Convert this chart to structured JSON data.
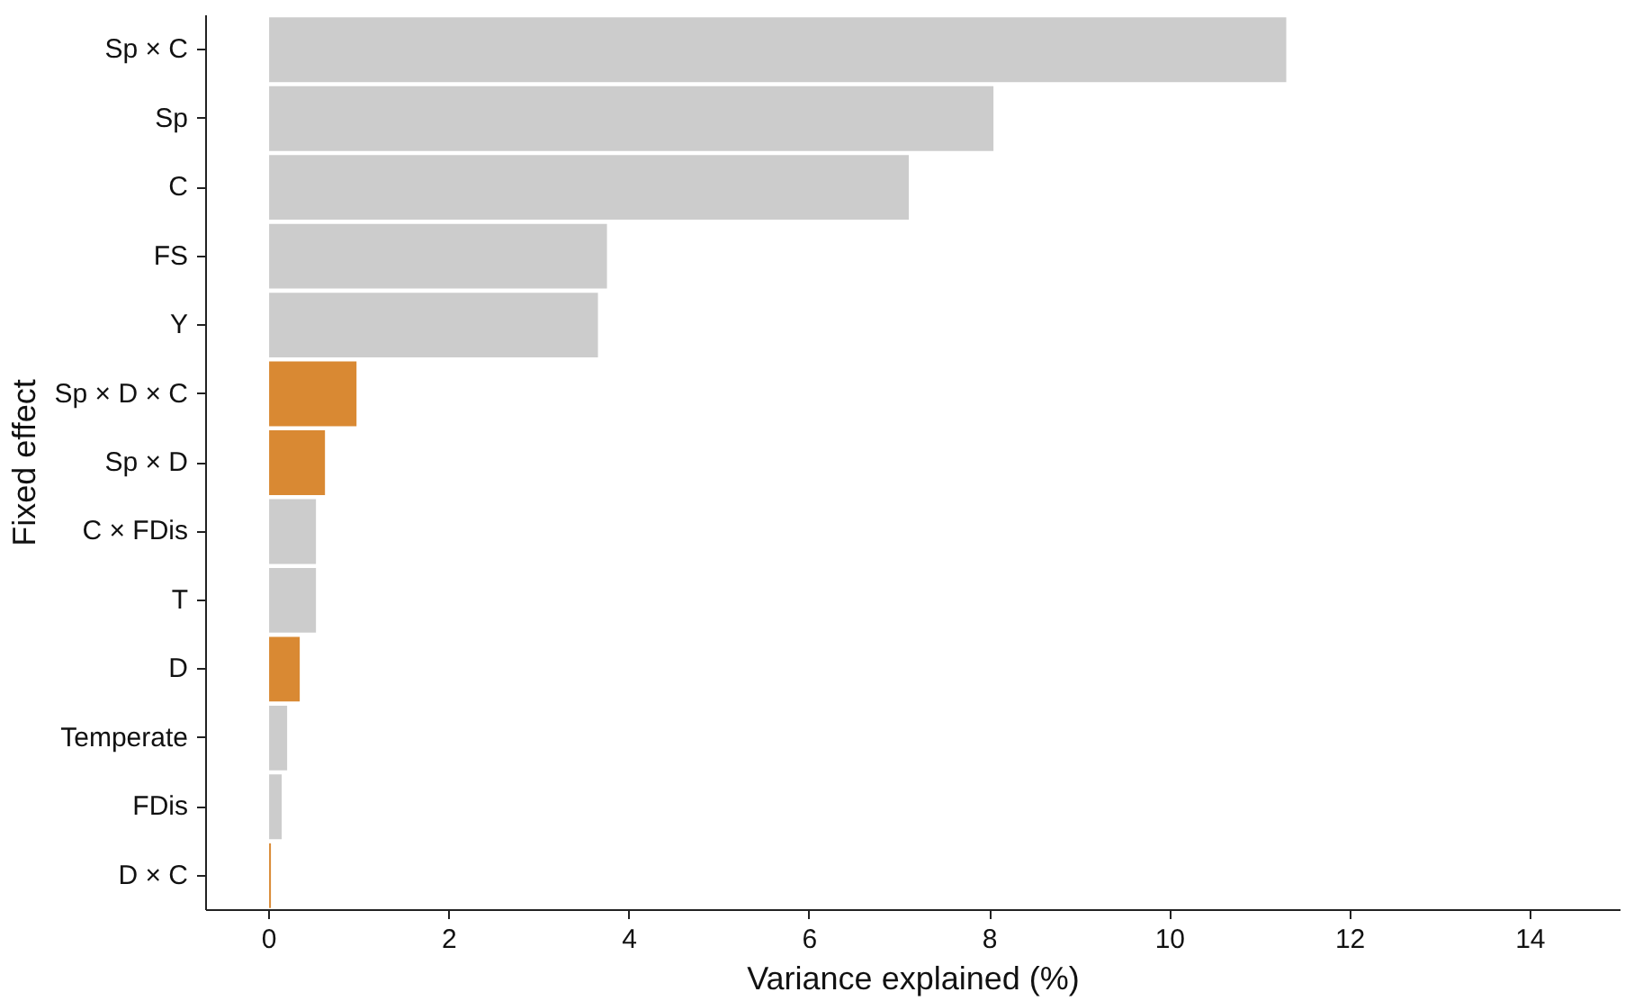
{
  "chart_data": {
    "type": "bar",
    "orientation": "horizontal",
    "xlabel": "Variance explained (%)",
    "ylabel": "Fixed effect",
    "categories": [
      "Sp × C",
      "Sp",
      "C",
      "FS",
      "Y",
      "Sp × D × C",
      "Sp × D",
      "C × FDis",
      "T",
      "D",
      "Temperate",
      "FDis",
      "D × C"
    ],
    "values": [
      11.29,
      8.04,
      7.1,
      3.75,
      3.65,
      0.97,
      0.62,
      0.52,
      0.52,
      0.34,
      0.2,
      0.14,
      0.02
    ],
    "colors": [
      "#cccccc",
      "#cccccc",
      "#cccccc",
      "#cccccc",
      "#cccccc",
      "#d98933",
      "#d98933",
      "#cccccc",
      "#cccccc",
      "#d98933",
      "#cccccc",
      "#cccccc",
      "#d98933"
    ],
    "xlim": [
      -0.7,
      15.0
    ],
    "xticks": [
      0,
      2,
      4,
      6,
      8,
      10,
      12,
      14
    ],
    "grid": false
  }
}
